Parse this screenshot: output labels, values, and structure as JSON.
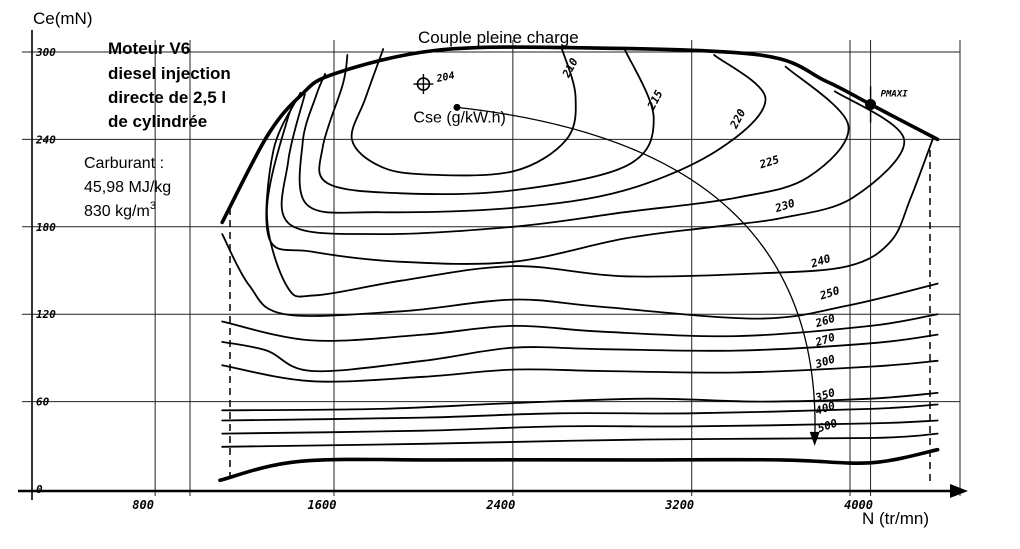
{
  "chart_data": {
    "type": "line",
    "subtype": "contour (iso-consumption map)",
    "title": "Couple pleine charge",
    "xlabel": "N (tr/mn)",
    "ylabel": "Ce(mN)",
    "xlim": [
      200,
      4400
    ],
    "ylim": [
      0,
      300
    ],
    "x_ticks": [
      "800",
      "1600",
      "2400",
      "3200",
      "4000"
    ],
    "y_ticks": [
      "0",
      "60",
      "120",
      "180",
      "240",
      "300"
    ],
    "x_tick_values": [
      800,
      1600,
      2400,
      3200,
      4000
    ],
    "y_tick_values": [
      0,
      60,
      120,
      180,
      240,
      300
    ],
    "grid": true,
    "info": {
      "engine_lines": [
        "Moteur V6",
        "diesel injection",
        "directe de 2,5 l",
        "de cylindrée"
      ],
      "fuel_title": "Carburant :",
      "fuel_energy": "45,98 MJ/kg",
      "fuel_density_value": "830 kg/m",
      "fuel_density_exp": "3"
    },
    "annotations": {
      "cse_label": "Cse (g/kW.h)",
      "optimum_label": "204",
      "optimum_point": {
        "x": 2000,
        "y": 278
      },
      "pmaxi_label": "PMAXI",
      "pmaxi_point": {
        "x": 4000,
        "y": 264
      }
    },
    "full_load_curve": [
      [
        1100,
        183
      ],
      [
        1300,
        242
      ],
      [
        1450,
        270
      ],
      [
        1600,
        285
      ],
      [
        2050,
        301
      ],
      [
        2650,
        303
      ],
      [
        3500,
        298
      ],
      [
        3800,
        280
      ],
      [
        4000,
        264
      ],
      [
        4300,
        240
      ]
    ],
    "idle_curve": [
      [
        1090,
        6
      ],
      [
        1450,
        19
      ],
      [
        2100,
        20
      ],
      [
        2900,
        20
      ],
      [
        3600,
        20
      ],
      [
        4000,
        18
      ],
      [
        4300,
        27
      ]
    ],
    "contours": [
      {
        "label": "210",
        "label_pos": {
          "x": 2650,
          "y": 282
        },
        "points": [
          [
            2620,
            302
          ],
          [
            2680,
            270
          ],
          [
            2640,
            240
          ],
          [
            2400,
            218
          ],
          [
            2000,
            216
          ],
          [
            1800,
            222
          ],
          [
            1680,
            240
          ],
          [
            1740,
            268
          ],
          [
            1820,
            302
          ]
        ]
      },
      {
        "label": "215",
        "label_pos": {
          "x": 3030,
          "y": 260
        },
        "points": [
          [
            2900,
            302
          ],
          [
            3030,
            255
          ],
          [
            2910,
            222
          ],
          [
            2400,
            205
          ],
          [
            1900,
            203
          ],
          [
            1570,
            210
          ],
          [
            1550,
            235
          ],
          [
            1640,
            278
          ],
          [
            1660,
            298
          ]
        ]
      },
      {
        "label": "220",
        "label_pos": {
          "x": 3400,
          "y": 247
        },
        "points": [
          [
            3300,
            298
          ],
          [
            3530,
            268
          ],
          [
            3320,
            233
          ],
          [
            2900,
            205
          ],
          [
            2400,
            193
          ],
          [
            1800,
            190
          ],
          [
            1480,
            195
          ],
          [
            1460,
            238
          ],
          [
            1520,
            270
          ],
          [
            1560,
            285
          ]
        ]
      },
      {
        "label": "225",
        "label_pos": {
          "x": 3510,
          "y": 220
        },
        "points": [
          [
            3620,
            290
          ],
          [
            3900,
            250
          ],
          [
            3720,
            214
          ],
          [
            3400,
            200
          ],
          [
            2900,
            190
          ],
          [
            2400,
            180
          ],
          [
            1800,
            175
          ],
          [
            1400,
            182
          ],
          [
            1395,
            225
          ],
          [
            1470,
            271
          ]
        ]
      },
      {
        "label": "230",
        "label_pos": {
          "x": 3580,
          "y": 190
        },
        "points": [
          [
            3840,
            273
          ],
          [
            4150,
            240
          ],
          [
            3920,
            200
          ],
          [
            3600,
            186
          ],
          [
            3300,
            180
          ],
          [
            2900,
            172
          ],
          [
            2400,
            156
          ],
          [
            1900,
            156
          ],
          [
            1500,
            163
          ],
          [
            1310,
            172
          ],
          [
            1330,
            233
          ],
          [
            1450,
            272
          ]
        ]
      },
      {
        "label": "240",
        "label_pos": {
          "x": 3740,
          "y": 152
        },
        "points": [
          [
            4280,
            241
          ],
          [
            4180,
            200
          ],
          [
            4090,
            170
          ],
          [
            3900,
            153
          ],
          [
            3500,
            148
          ],
          [
            2900,
            146
          ],
          [
            2400,
            153
          ],
          [
            1900,
            143
          ],
          [
            1520,
            133
          ],
          [
            1390,
            139
          ],
          [
            1300,
            190
          ],
          [
            1390,
            253
          ],
          [
            1450,
            270
          ]
        ]
      },
      {
        "label": "250",
        "label_pos": {
          "x": 3780,
          "y": 130
        },
        "points": [
          [
            1100,
            175
          ],
          [
            1220,
            140
          ],
          [
            1380,
            120
          ],
          [
            1900,
            122
          ],
          [
            2400,
            130
          ],
          [
            2800,
            125
          ],
          [
            3500,
            117
          ],
          [
            3900,
            126
          ],
          [
            4300,
            141
          ]
        ]
      },
      {
        "label": "260",
        "label_pos": {
          "x": 3760,
          "y": 111
        },
        "points": [
          [
            1100,
            115
          ],
          [
            1500,
            102
          ],
          [
            2000,
            106
          ],
          [
            2400,
            112
          ],
          [
            2800,
            108
          ],
          [
            3400,
            105
          ],
          [
            4000,
            112
          ],
          [
            4300,
            120
          ]
        ]
      },
      {
        "label": "270",
        "label_pos": {
          "x": 3760,
          "y": 98
        },
        "points": [
          [
            1100,
            101
          ],
          [
            1300,
            95
          ],
          [
            1500,
            81
          ],
          [
            2000,
            88
          ],
          [
            2400,
            97
          ],
          [
            2800,
            96
          ],
          [
            3400,
            95
          ],
          [
            4000,
            100
          ],
          [
            4300,
            106
          ]
        ]
      },
      {
        "label": "300",
        "label_pos": {
          "x": 3760,
          "y": 83
        },
        "points": [
          [
            1100,
            85
          ],
          [
            1500,
            74
          ],
          [
            2000,
            77
          ],
          [
            2400,
            82
          ],
          [
            2800,
            81
          ],
          [
            3400,
            80
          ],
          [
            4000,
            84
          ],
          [
            4300,
            88
          ]
        ]
      },
      {
        "label": "350",
        "label_pos": {
          "x": 3760,
          "y": 60
        },
        "points": [
          [
            1100,
            54
          ],
          [
            1800,
            55
          ],
          [
            2400,
            59
          ],
          [
            3000,
            62
          ],
          [
            3500,
            60
          ],
          [
            4000,
            62
          ],
          [
            4300,
            66
          ]
        ]
      },
      {
        "label": "400",
        "label_pos": {
          "x": 3760,
          "y": 51
        },
        "points": [
          [
            1100,
            47
          ],
          [
            2000,
            49
          ],
          [
            2600,
            52
          ],
          [
            3200,
            52
          ],
          [
            4000,
            55
          ],
          [
            4300,
            58
          ]
        ]
      },
      {
        "label": "500",
        "label_pos": {
          "x": 3770,
          "y": 39
        },
        "points": [
          [
            1100,
            38
          ],
          [
            2000,
            40
          ],
          [
            2600,
            43
          ],
          [
            3200,
            43
          ],
          [
            4000,
            45
          ],
          [
            4300,
            47
          ]
        ]
      },
      {
        "label": "",
        "label_pos": null,
        "points": [
          [
            1100,
            29
          ],
          [
            2000,
            31
          ],
          [
            3000,
            34
          ],
          [
            4000,
            35
          ],
          [
            4300,
            38
          ]
        ]
      }
    ]
  }
}
